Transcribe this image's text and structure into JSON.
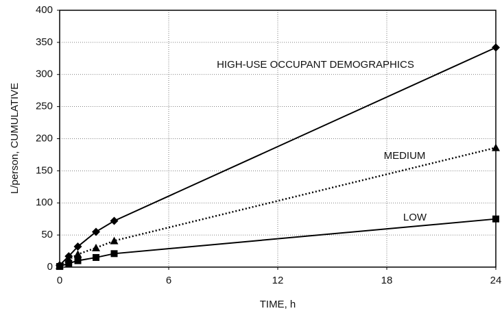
{
  "chart_data": {
    "type": "line",
    "xlabel": "TIME, h",
    "ylabel": "L/person, CUMULATIVE",
    "xlim": [
      0,
      24
    ],
    "xticks": [
      0,
      6,
      12,
      18,
      24
    ],
    "ylim": [
      0,
      400
    ],
    "yticks": [
      0,
      50,
      100,
      150,
      200,
      250,
      300,
      350,
      400
    ],
    "grid": true,
    "series": [
      {
        "name": "HIGH-USE OCCUPANT DEMOGRAPHICS",
        "color": "#000000",
        "marker": "diamond",
        "linestyle": "solid",
        "x": [
          0,
          0.5,
          1,
          2,
          3,
          24
        ],
        "values": [
          3,
          17,
          32,
          55,
          72,
          342
        ]
      },
      {
        "name": "MEDIUM",
        "color": "#000000",
        "marker": "triangle",
        "linestyle": "dotted",
        "x": [
          0,
          0.5,
          1,
          2,
          3,
          24
        ],
        "values": [
          2,
          12,
          20,
          30,
          41,
          186
        ]
      },
      {
        "name": "LOW",
        "color": "#000000",
        "marker": "square",
        "linestyle": "solid",
        "x": [
          0,
          0.5,
          1,
          2,
          3,
          24
        ],
        "values": [
          1,
          6,
          10,
          15,
          21,
          75
        ]
      }
    ]
  }
}
